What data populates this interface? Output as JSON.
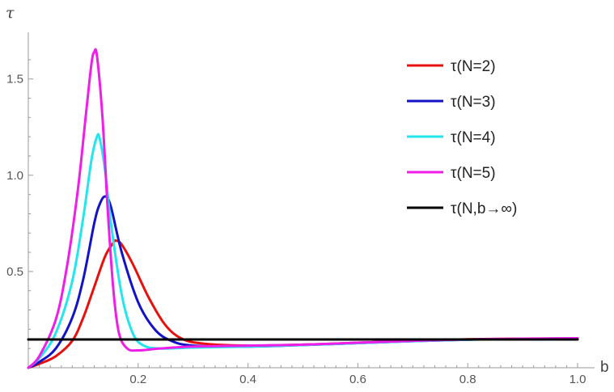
{
  "chart_data": {
    "type": "line",
    "title": "",
    "xlabel": "b",
    "ylabel": "τ",
    "xlim": [
      0,
      1.0
    ],
    "ylim": [
      0,
      1.65
    ],
    "grid": false,
    "legend_position": "top-right",
    "x_ticks": [
      "0.2",
      "0.4",
      "0.6",
      "0.8",
      "1.0"
    ],
    "y_ticks": [
      "0.5",
      "1.0",
      "1.5"
    ],
    "series": [
      {
        "name": "τ(N=2)",
        "color": "#e8100c",
        "points": [
          [
            0,
            0
          ],
          [
            0.02,
            0.02
          ],
          [
            0.05,
            0.06
          ],
          [
            0.08,
            0.14
          ],
          [
            0.1,
            0.26
          ],
          [
            0.12,
            0.42
          ],
          [
            0.14,
            0.58
          ],
          [
            0.155,
            0.65
          ],
          [
            0.16,
            0.66
          ],
          [
            0.17,
            0.64
          ],
          [
            0.19,
            0.54
          ],
          [
            0.22,
            0.36
          ],
          [
            0.25,
            0.22
          ],
          [
            0.28,
            0.15
          ],
          [
            0.32,
            0.125
          ],
          [
            0.4,
            0.115
          ],
          [
            0.5,
            0.12
          ],
          [
            0.6,
            0.13
          ],
          [
            0.7,
            0.14
          ],
          [
            0.8,
            0.148
          ],
          [
            0.9,
            0.151
          ],
          [
            1.0,
            0.152
          ]
        ]
      },
      {
        "name": "τ(N=3)",
        "color": "#1212c8",
        "points": [
          [
            0,
            0
          ],
          [
            0.02,
            0.03
          ],
          [
            0.05,
            0.1
          ],
          [
            0.08,
            0.26
          ],
          [
            0.1,
            0.46
          ],
          [
            0.12,
            0.75
          ],
          [
            0.13,
            0.85
          ],
          [
            0.14,
            0.89
          ],
          [
            0.15,
            0.84
          ],
          [
            0.17,
            0.6
          ],
          [
            0.2,
            0.34
          ],
          [
            0.23,
            0.2
          ],
          [
            0.26,
            0.14
          ],
          [
            0.3,
            0.115
          ],
          [
            0.4,
            0.11
          ],
          [
            0.5,
            0.118
          ],
          [
            0.6,
            0.128
          ],
          [
            0.7,
            0.138
          ],
          [
            0.8,
            0.146
          ],
          [
            0.9,
            0.15
          ],
          [
            1.0,
            0.152
          ]
        ]
      },
      {
        "name": "τ(N=4)",
        "color": "#22e6ee",
        "points": [
          [
            0,
            0
          ],
          [
            0.02,
            0.05
          ],
          [
            0.05,
            0.18
          ],
          [
            0.08,
            0.45
          ],
          [
            0.1,
            0.78
          ],
          [
            0.115,
            1.08
          ],
          [
            0.125,
            1.2
          ],
          [
            0.13,
            1.19
          ],
          [
            0.14,
            1.02
          ],
          [
            0.15,
            0.76
          ],
          [
            0.17,
            0.38
          ],
          [
            0.19,
            0.18
          ],
          [
            0.21,
            0.115
          ],
          [
            0.24,
            0.1
          ],
          [
            0.3,
            0.105
          ],
          [
            0.4,
            0.11
          ],
          [
            0.5,
            0.118
          ],
          [
            0.6,
            0.128
          ],
          [
            0.7,
            0.138
          ],
          [
            0.8,
            0.146
          ],
          [
            0.9,
            0.15
          ],
          [
            1.0,
            0.152
          ]
        ]
      },
      {
        "name": "τ(N=5)",
        "color": "#ee1ee8",
        "points": [
          [
            0,
            0
          ],
          [
            0.02,
            0.06
          ],
          [
            0.05,
            0.25
          ],
          [
            0.07,
            0.52
          ],
          [
            0.09,
            0.92
          ],
          [
            0.105,
            1.32
          ],
          [
            0.115,
            1.58
          ],
          [
            0.12,
            1.64
          ],
          [
            0.125,
            1.62
          ],
          [
            0.135,
            1.3
          ],
          [
            0.145,
            0.8
          ],
          [
            0.155,
            0.4
          ],
          [
            0.165,
            0.18
          ],
          [
            0.18,
            0.1
          ],
          [
            0.2,
            0.09
          ],
          [
            0.24,
            0.1
          ],
          [
            0.3,
            0.11
          ],
          [
            0.4,
            0.115
          ],
          [
            0.5,
            0.12
          ],
          [
            0.6,
            0.13
          ],
          [
            0.7,
            0.14
          ],
          [
            0.8,
            0.147
          ],
          [
            0.9,
            0.151
          ],
          [
            1.0,
            0.153
          ]
        ]
      },
      {
        "name": "τ(N,b→∞)",
        "color": "#000000",
        "points": [
          [
            0,
            0.147
          ],
          [
            1.0,
            0.147
          ]
        ]
      }
    ]
  }
}
